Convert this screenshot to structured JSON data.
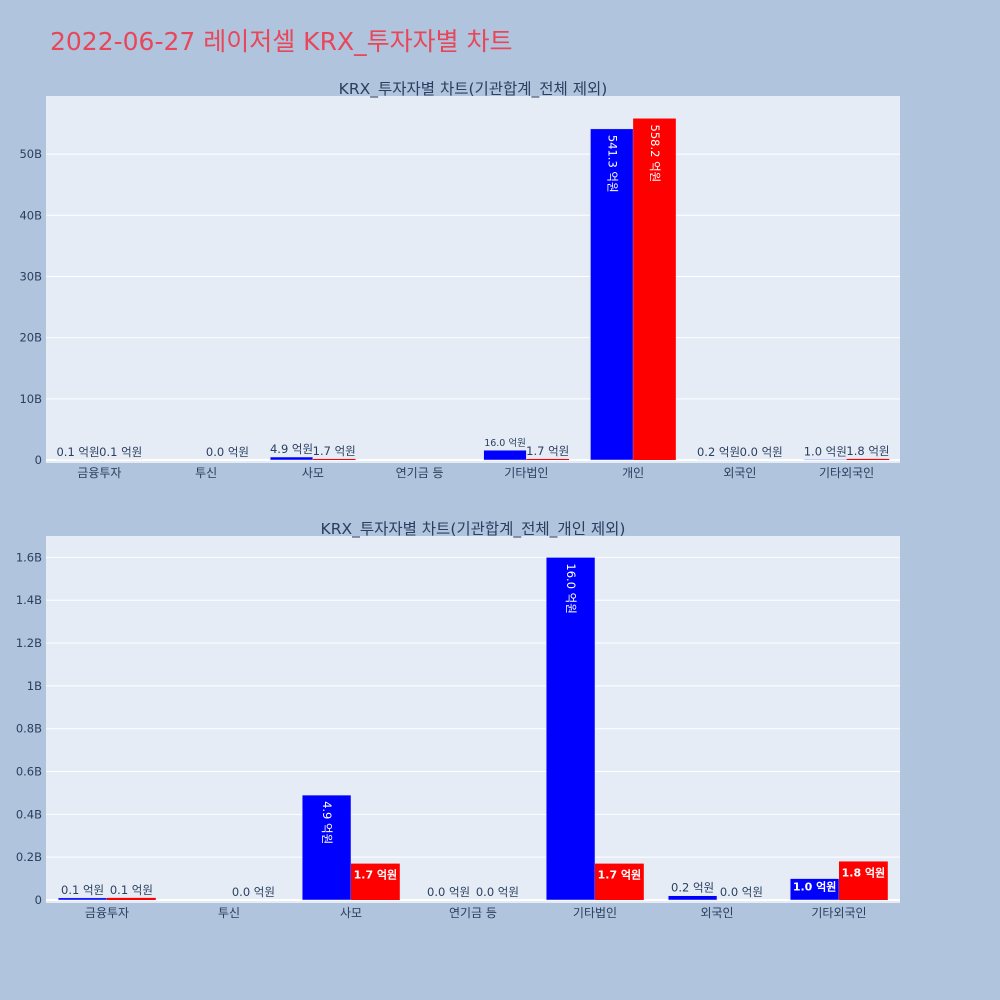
{
  "page_title": "2022-06-27 레이저셀 KRX_투자자별 차트",
  "colors": {
    "buy": "#0000ff",
    "sell": "#ff0000",
    "title": "#e8475a",
    "plot_bg": "#e5ecf6",
    "page_bg": "#b0c4de"
  },
  "chart_data": [
    {
      "type": "bar",
      "title": "KRX_투자자별 차트(기관합계_전체 제외)",
      "categories": [
        "금융투자",
        "투신",
        "사모",
        "연기금 등",
        "기타법인",
        "개인",
        "외국인",
        "기타외국인"
      ],
      "y_ticks": [
        "0",
        "10B",
        "20B",
        "30B",
        "40B",
        "50B"
      ],
      "ylim": [
        0,
        59.5
      ],
      "grid": true,
      "series": [
        {
          "color": "#0000ff",
          "values": [
            0.01,
            0.0,
            0.49,
            null,
            1.6,
            54.13,
            0.02,
            0.1
          ],
          "labels": [
            "0.1 억원",
            "",
            "4.9 억원",
            "",
            "16.0 억원",
            "541.3 억원",
            "0.2 억원",
            "1.0 억원"
          ]
        },
        {
          "color": "#ff0000",
          "values": [
            0.01,
            0.0,
            0.17,
            null,
            0.17,
            55.82,
            0.0,
            0.18
          ],
          "labels": [
            "0.1 억원",
            "0.0 억원",
            "1.7 억원",
            "",
            "1.7 억원",
            "558.2 억원",
            "0.0 억원",
            "1.8 억원"
          ]
        }
      ]
    },
    {
      "type": "bar",
      "title": "KRX_투자자별 차트(기관합계_전체_개인 제외)",
      "categories": [
        "금융투자",
        "투신",
        "사모",
        "연기금 등",
        "기타법인",
        "외국인",
        "기타외국인"
      ],
      "y_ticks": [
        "0",
        "0.2B",
        "0.4B",
        "0.6B",
        "0.8B",
        "1B",
        "1.2B",
        "1.4B",
        "1.6B"
      ],
      "ylim": [
        0,
        1.7
      ],
      "grid": true,
      "series": [
        {
          "color": "#0000ff",
          "values": [
            0.01,
            0.0,
            0.49,
            0.0,
            1.6,
            0.02,
            0.1
          ],
          "labels": [
            "0.1 억원",
            "",
            "4.9 억원",
            "0.0 억원",
            "16.0 억원",
            "0.2 억원",
            "1.0 억원"
          ]
        },
        {
          "color": "#ff0000",
          "values": [
            0.01,
            0.0,
            0.17,
            0.0,
            0.17,
            0.0,
            0.18
          ],
          "labels": [
            "0.1 억원",
            "0.0 억원",
            "1.7 억원",
            "0.0 억원",
            "1.7 억원",
            "0.0 억원",
            "1.8 억원"
          ]
        }
      ]
    }
  ]
}
